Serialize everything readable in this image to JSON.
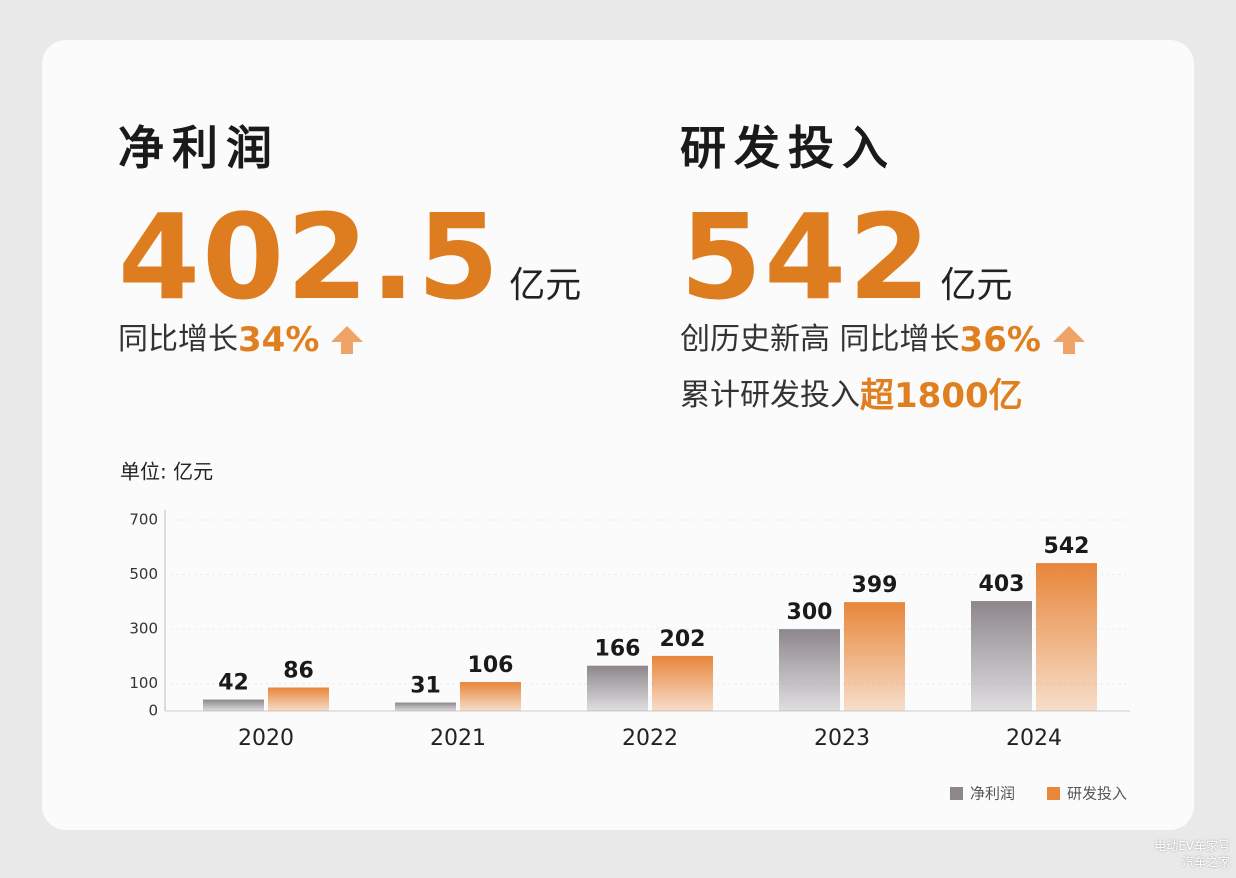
{
  "kpis": [
    {
      "title": "净利润",
      "value": "402.5",
      "unit": "亿元",
      "notes": [
        [
          {
            "text": "同比增长",
            "accent": false
          },
          {
            "text": "34%",
            "accent": true
          }
        ]
      ]
    },
    {
      "title": "研发投入",
      "value": "542",
      "unit": "亿元",
      "notes": [
        [
          {
            "text": "创历史新高 同比增长",
            "accent": false
          },
          {
            "text": "36%",
            "accent": true
          }
        ],
        [
          {
            "text": "累计研发投入",
            "accent": false
          },
          {
            "text": "超1800亿",
            "accent": true
          }
        ]
      ]
    }
  ],
  "chart_data": {
    "type": "bar",
    "y_label": "单位: 亿元",
    "categories": [
      "2020",
      "2021",
      "2022",
      "2023",
      "2024"
    ],
    "series": [
      {
        "name": "净利润",
        "color": "#8d878c",
        "values": [
          42,
          31,
          166,
          300,
          403
        ]
      },
      {
        "name": "研发投入",
        "color": "#e8863a",
        "values": [
          86,
          106,
          202,
          399,
          542
        ]
      }
    ],
    "ylim": [
      0,
      700
    ],
    "yticks": [
      0,
      100,
      300,
      500,
      700
    ],
    "grid": true,
    "legend": "bottom-right"
  },
  "watermark": [
    "电动EV车家号",
    "汽车之家"
  ]
}
